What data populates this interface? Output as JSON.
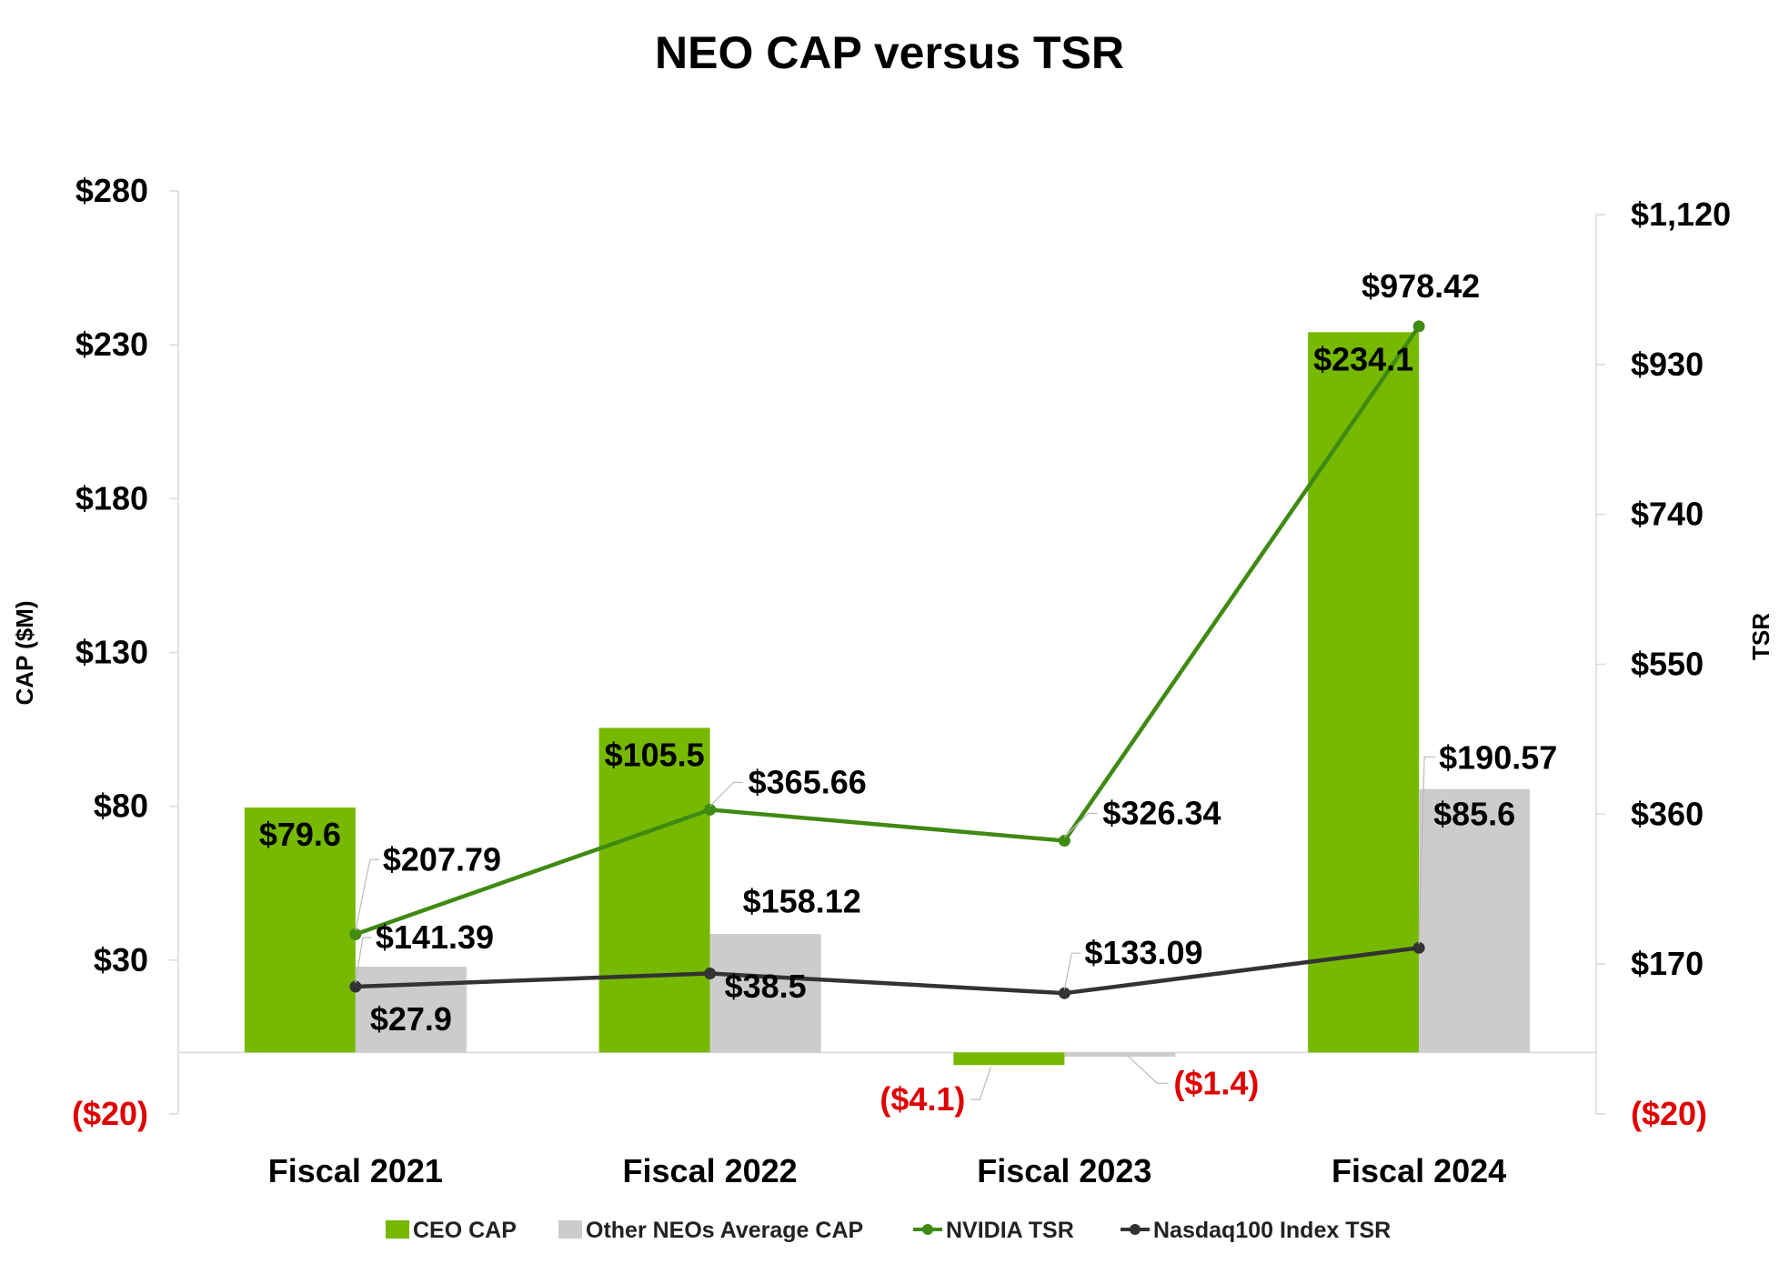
{
  "chart_data": {
    "type": "bar",
    "title": "NEO CAP versus TSR",
    "categories": [
      "Fiscal 2021",
      "Fiscal 2022",
      "Fiscal 2023",
      "Fiscal 2024"
    ],
    "ylabel": "CAP ($M)",
    "y2label": "TSR",
    "ylim": [
      -20,
      280
    ],
    "y2lim": [
      -20,
      1120
    ],
    "yticks": [
      {
        "value": -20,
        "label": "($20)",
        "negative": true
      },
      {
        "value": 30,
        "label": "$30",
        "negative": false
      },
      {
        "value": 80,
        "label": "$80",
        "negative": false
      },
      {
        "value": 130,
        "label": "$130",
        "negative": false
      },
      {
        "value": 180,
        "label": "$180",
        "negative": false
      },
      {
        "value": 230,
        "label": "$230",
        "negative": false
      },
      {
        "value": 280,
        "label": "$280",
        "negative": false
      }
    ],
    "y2ticks": [
      {
        "value": -20,
        "label": "($20)",
        "negative": true
      },
      {
        "value": 170,
        "label": "$170",
        "negative": false
      },
      {
        "value": 360,
        "label": "$360",
        "negative": false
      },
      {
        "value": 550,
        "label": "$550",
        "negative": false
      },
      {
        "value": 740,
        "label": "$740",
        "negative": false
      },
      {
        "value": 930,
        "label": "$930",
        "negative": false
      },
      {
        "value": 1120,
        "label": "$1,120",
        "negative": false
      }
    ],
    "series": [
      {
        "name": "CEO CAP",
        "kind": "bar",
        "axis": "left",
        "color": "#76b900",
        "values": [
          79.6,
          105.5,
          -4.1,
          234.1
        ],
        "labels": [
          "$79.6",
          "$105.5",
          "($4.1)",
          "$234.1"
        ]
      },
      {
        "name": "Other NEOs Average CAP",
        "kind": "bar",
        "axis": "left",
        "color": "#cccccc",
        "values": [
          27.9,
          38.5,
          -1.4,
          85.6
        ],
        "labels": [
          "$27.9",
          "$38.5",
          "($1.4)",
          "$85.6"
        ]
      },
      {
        "name": "NVIDIA TSR",
        "kind": "line",
        "axis": "right",
        "color": "#3f8a12",
        "values": [
          207.79,
          365.66,
          326.34,
          978.42
        ],
        "labels": [
          "$207.79",
          "$365.66",
          "$326.34",
          "$978.42"
        ]
      },
      {
        "name": "Nasdaq100 Index TSR",
        "kind": "line",
        "axis": "right",
        "color": "#333333",
        "values": [
          141.39,
          158.12,
          133.09,
          190.57
        ],
        "labels": [
          "$141.39",
          "$158.12",
          "$133.09",
          "$190.57"
        ]
      }
    ],
    "legend_position": "bottom"
  }
}
